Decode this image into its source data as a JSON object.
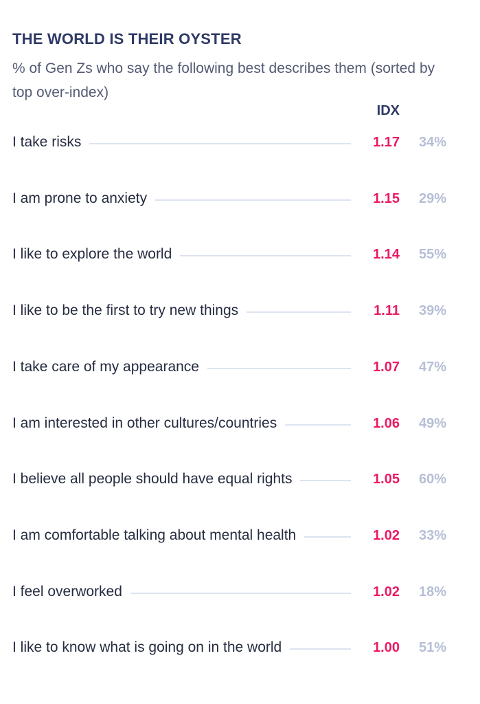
{
  "chart_data": {
    "type": "bar",
    "title": "THE WORLD IS THEIR OYSTER",
    "subtitle": "% of Gen Zs who say the following best describes them (sorted by top over-index)",
    "idx_header": "IDX",
    "categories": [
      "I take risks",
      "I am prone to anxiety",
      "I like to explore the world",
      "I like to be the first to try new things",
      "I take care of my appearance",
      "I am interested in other cultures/countries",
      "I believe all people should have equal rights",
      "I am comfortable talking about mental health",
      "I feel overworked",
      "I like to know what is going on in the world"
    ],
    "idx_labels": [
      "1.17",
      "1.15",
      "1.14",
      "1.11",
      "1.07",
      "1.06",
      "1.05",
      "1.02",
      "1.02",
      "1.00"
    ],
    "pct_labels": [
      "34%",
      "29%",
      "55%",
      "39%",
      "47%",
      "49%",
      "60%",
      "33%",
      "18%",
      "51%"
    ],
    "series": [
      {
        "values": [
          1.17,
          1.15,
          1.14,
          1.11,
          1.07,
          1.06,
          1.05,
          1.02,
          1.02,
          1.0
        ]
      },
      {
        "values": [
          34,
          29,
          55,
          39,
          47,
          49,
          60,
          33,
          18,
          51
        ]
      }
    ],
    "colors": {
      "title": "#2f3a66",
      "idx": "#ea1a64",
      "pct": "#b7bfd6",
      "leader": "#dde3f0"
    }
  }
}
